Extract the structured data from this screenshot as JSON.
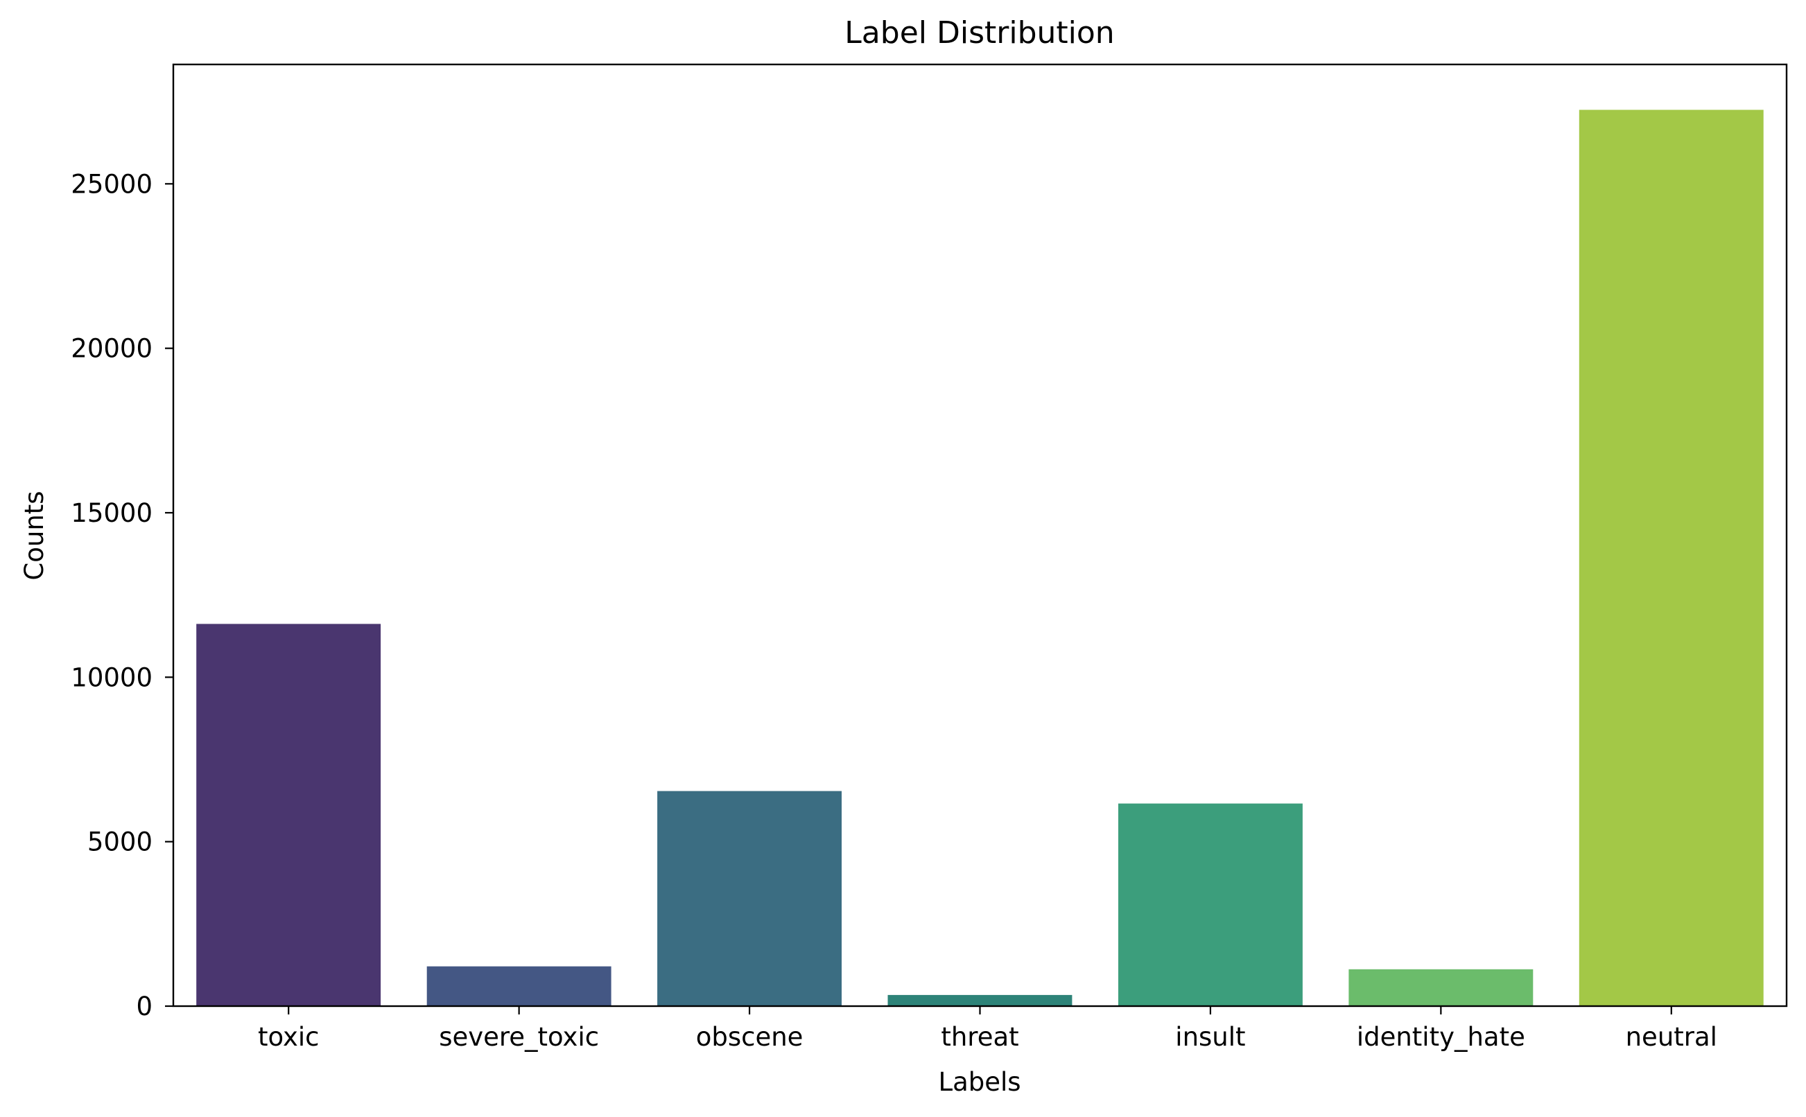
{
  "chart_data": {
    "type": "bar",
    "title": "Label Distribution",
    "xlabel": "Labels",
    "ylabel": "Counts",
    "categories": [
      "toxic",
      "severe_toxic",
      "obscene",
      "threat",
      "insult",
      "identity_hate",
      "neutral"
    ],
    "values": [
      11620,
      1210,
      6540,
      340,
      6160,
      1120,
      27250
    ],
    "colors": [
      "#4a366f",
      "#445784",
      "#3b6d82",
      "#2d8378",
      "#3c9e7c",
      "#6bbc6b",
      "#a3c847"
    ],
    "ylim": [
      0,
      28630
    ],
    "yticks": [
      0,
      5000,
      10000,
      15000,
      20000,
      25000
    ],
    "grid": false,
    "legend": "none"
  }
}
